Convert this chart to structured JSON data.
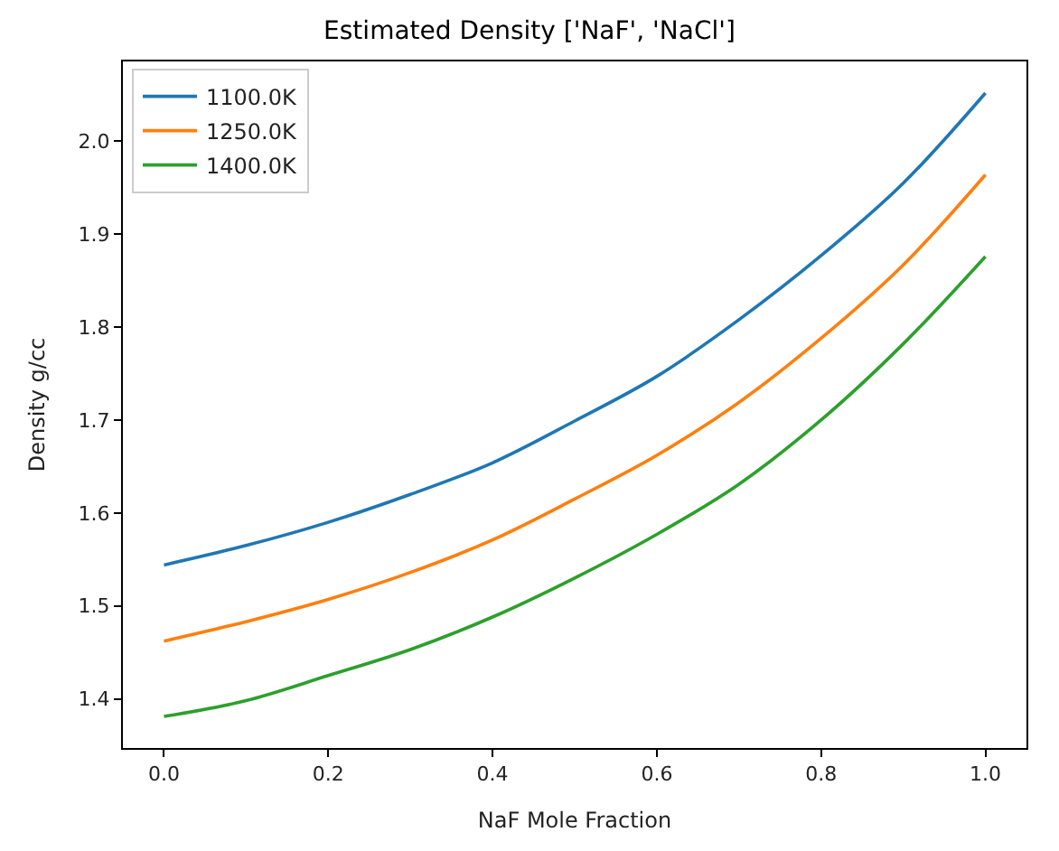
{
  "chart_data": {
    "type": "line",
    "title": "Estimated Density ['NaF', 'NaCl']",
    "xlabel": "NaF Mole Fraction",
    "ylabel": "Density g/cc",
    "x": [
      0,
      0.1,
      0.2,
      0.3,
      0.4,
      0.5,
      0.6,
      0.7,
      0.8,
      0.9,
      1.0
    ],
    "series": [
      {
        "name": "1100.0K",
        "color": "#1f77b4",
        "values": [
          1.544,
          1.565,
          1.59,
          1.62,
          1.654,
          1.699,
          1.747,
          1.808,
          1.877,
          1.955,
          2.052
        ]
      },
      {
        "name": "1250.0K",
        "color": "#ff7f0e",
        "values": [
          1.462,
          1.483,
          1.507,
          1.536,
          1.571,
          1.615,
          1.662,
          1.719,
          1.788,
          1.867,
          1.964
        ]
      },
      {
        "name": "1400.0K",
        "color": "#2ca02c",
        "values": [
          1.381,
          1.398,
          1.425,
          1.453,
          1.488,
          1.53,
          1.577,
          1.631,
          1.7,
          1.782,
          1.876
        ]
      }
    ],
    "xlim": [
      -0.05,
      1.05
    ],
    "xticks": [
      {
        "value": 0,
        "label": "0.0"
      },
      0.2,
      0.4,
      0.6,
      0.8,
      {
        "value": 1,
        "label": "1.0"
      }
    ],
    "ylim": [
      1.347,
      2.086
    ],
    "yticks": [
      1.4,
      1.5,
      1.6,
      1.7,
      1.8,
      1.9,
      {
        "value": 2,
        "label": "2.0"
      }
    ],
    "legend": "top left",
    "marker": "none",
    "line_style": "solid"
  }
}
